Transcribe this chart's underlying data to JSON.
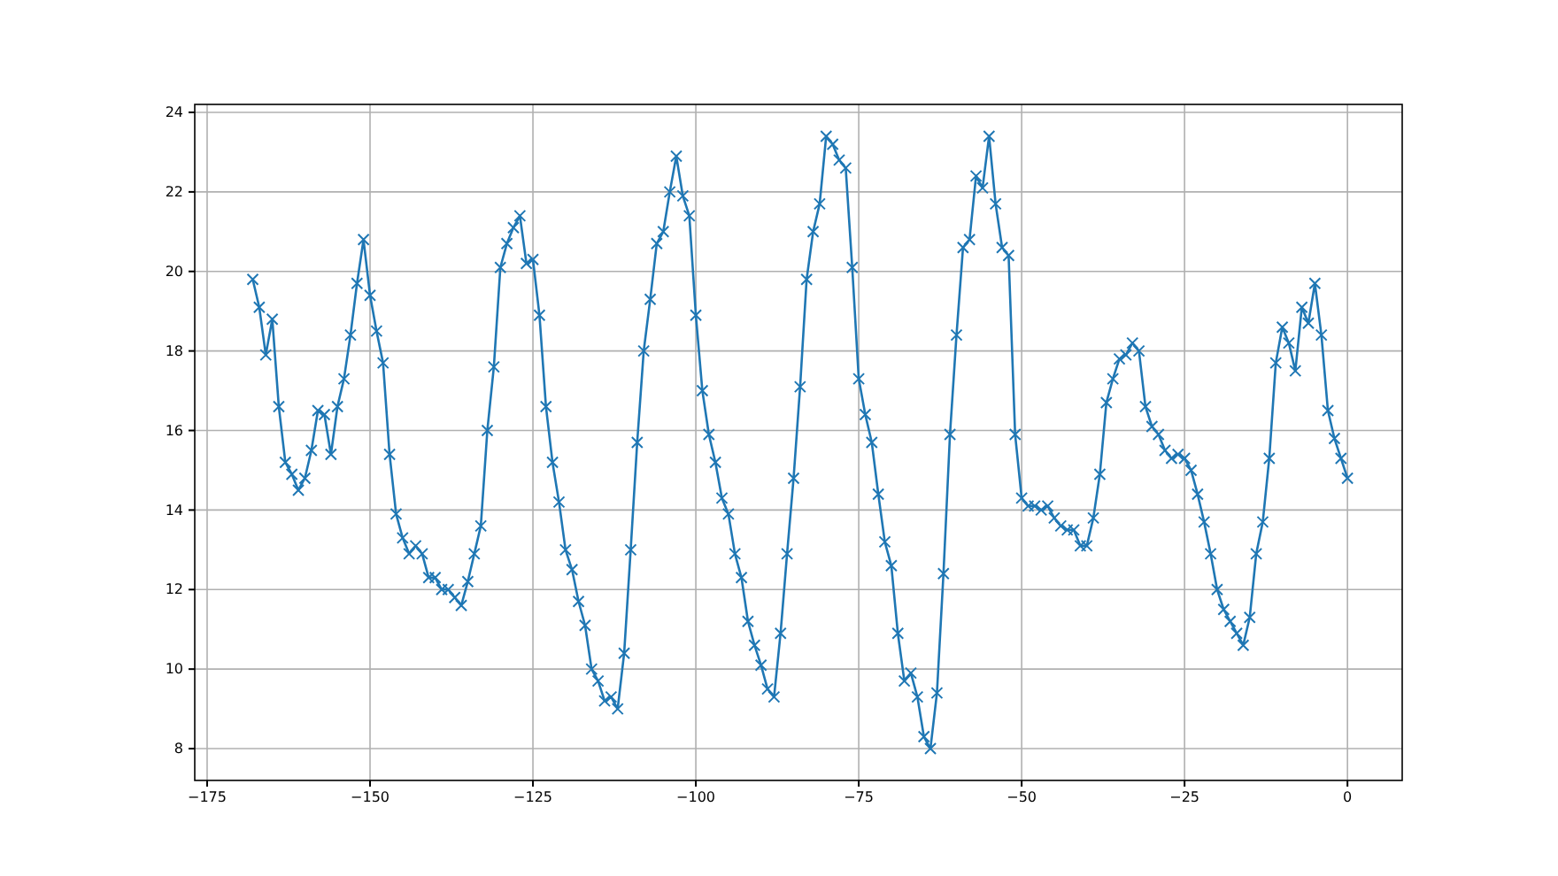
{
  "chart_data": {
    "type": "line",
    "marker": "cross",
    "grid": true,
    "xlim": [
      -176.9,
      8.4
    ],
    "ylim": [
      7.2,
      24.2
    ],
    "xticks": [
      -175,
      -150,
      -125,
      -100,
      -75,
      -50,
      -25,
      0
    ],
    "yticks": [
      8,
      10,
      12,
      14,
      16,
      18,
      20,
      22,
      24
    ],
    "x": [
      -168,
      -167,
      -166,
      -165,
      -164,
      -163,
      -162,
      -161,
      -160,
      -159,
      -158,
      -157,
      -156,
      -155,
      -154,
      -153,
      -152,
      -151,
      -150,
      -149,
      -148,
      -147,
      -146,
      -145,
      -144,
      -143,
      -142,
      -141,
      -140,
      -139,
      -138,
      -137,
      -136,
      -135,
      -134,
      -133,
      -132,
      -131,
      -130,
      -129,
      -128,
      -127,
      -126,
      -125,
      -124,
      -123,
      -122,
      -121,
      -120,
      -119,
      -118,
      -117,
      -116,
      -115,
      -114,
      -113,
      -112,
      -111,
      -110,
      -109,
      -108,
      -107,
      -106,
      -105,
      -104,
      -103,
      -102,
      -101,
      -100,
      -99,
      -98,
      -97,
      -96,
      -95,
      -94,
      -93,
      -92,
      -91,
      -90,
      -89,
      -88,
      -87,
      -86,
      -85,
      -84,
      -83,
      -82,
      -81,
      -80,
      -79,
      -78,
      -77,
      -76,
      -75,
      -74,
      -73,
      -72,
      -71,
      -70,
      -69,
      -68,
      -67,
      -66,
      -65,
      -64,
      -63,
      -62,
      -61,
      -60,
      -59,
      -58,
      -57,
      -56,
      -55,
      -54,
      -53,
      -52,
      -51,
      -50,
      -49,
      -48,
      -47,
      -46,
      -45,
      -44,
      -43,
      -42,
      -41,
      -40,
      -39,
      -38,
      -37,
      -36,
      -35,
      -34,
      -33,
      -32,
      -31,
      -30,
      -29,
      -28,
      -27,
      -26,
      -25,
      -24,
      -23,
      -22,
      -21,
      -20,
      -19,
      -18,
      -17,
      -16,
      -15,
      -14,
      -13,
      -12,
      -11,
      -10,
      -9,
      -8,
      -7,
      -6,
      -5,
      -4,
      -3,
      -2,
      -1,
      0
    ],
    "series": [
      {
        "color": "#1f77b4",
        "values": [
          19.8,
          19.1,
          17.9,
          18.8,
          16.6,
          15.2,
          14.9,
          14.5,
          14.8,
          15.5,
          16.5,
          16.4,
          15.4,
          16.6,
          17.3,
          18.4,
          19.7,
          20.8,
          19.4,
          18.5,
          17.7,
          15.4,
          13.9,
          13.3,
          12.9,
          13.1,
          12.9,
          12.3,
          12.3,
          12.0,
          12.0,
          11.8,
          11.6,
          12.2,
          12.9,
          13.6,
          16.0,
          17.6,
          20.1,
          20.7,
          21.1,
          21.4,
          20.2,
          20.3,
          18.9,
          16.6,
          15.2,
          14.2,
          13.0,
          12.5,
          11.7,
          11.1,
          10.0,
          9.7,
          9.2,
          9.3,
          9.0,
          10.4,
          13.0,
          15.7,
          18.0,
          19.3,
          20.7,
          21.0,
          22.0,
          22.9,
          21.9,
          21.4,
          18.9,
          17.0,
          15.9,
          15.2,
          14.3,
          13.9,
          12.9,
          12.3,
          11.2,
          10.6,
          10.1,
          9.5,
          9.3,
          10.9,
          12.9,
          14.8,
          17.1,
          19.8,
          21.0,
          21.7,
          23.4,
          23.2,
          22.8,
          22.6,
          20.1,
          17.3,
          16.4,
          15.7,
          14.4,
          13.2,
          12.6,
          10.9,
          9.7,
          9.9,
          9.3,
          8.3,
          8.0,
          9.4,
          12.4,
          15.9,
          18.4,
          20.6,
          20.8,
          22.4,
          22.1,
          23.4,
          21.7,
          20.6,
          20.4,
          15.9,
          14.3,
          14.1,
          14.1,
          14.0,
          14.1,
          13.8,
          13.6,
          13.5,
          13.5,
          13.1,
          13.1,
          13.8,
          14.9,
          16.7,
          17.3,
          17.8,
          17.9,
          18.2,
          18.0,
          16.6,
          16.1,
          15.9,
          15.5,
          15.3,
          15.4,
          15.3,
          15.0,
          14.4,
          13.7,
          12.9,
          12.0,
          11.5,
          11.2,
          10.9,
          10.6,
          11.3,
          12.9,
          13.7,
          15.3,
          17.7,
          18.6,
          18.2,
          17.5,
          19.1,
          18.7,
          19.7,
          18.4,
          16.5,
          15.8,
          15.3,
          14.8
        ]
      }
    ]
  }
}
